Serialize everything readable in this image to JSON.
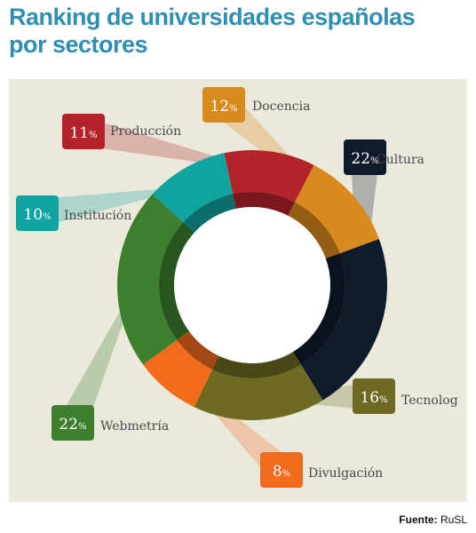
{
  "title_lines": [
    "Ranking de universidades españolas",
    "por sectores"
  ],
  "source_label": "Fuente:",
  "source_value": "RuSL",
  "chart_data": {
    "type": "pie",
    "variant": "donut",
    "title": "Ranking de universidades españolas por sectores",
    "unit": "%",
    "slices": [
      {
        "label": "Cultura",
        "value": 22,
        "color": "#0f1b2b"
      },
      {
        "label": "Tecnolog",
        "value": 16,
        "color": "#6e6a24"
      },
      {
        "label": "Divulgación",
        "value": 8,
        "color": "#f26b1d"
      },
      {
        "label": "Webmetría",
        "value": 22,
        "color": "#3d7f2d"
      },
      {
        "label": "Institución",
        "value": 10,
        "color": "#11a3a0"
      },
      {
        "label": "Producción",
        "value": 11,
        "color": "#b3232a"
      },
      {
        "label": "Docencia",
        "value": 12,
        "color": "#d98a1c"
      }
    ],
    "panel_color": "#eae9dc",
    "title_color": "#2f8fb3"
  }
}
